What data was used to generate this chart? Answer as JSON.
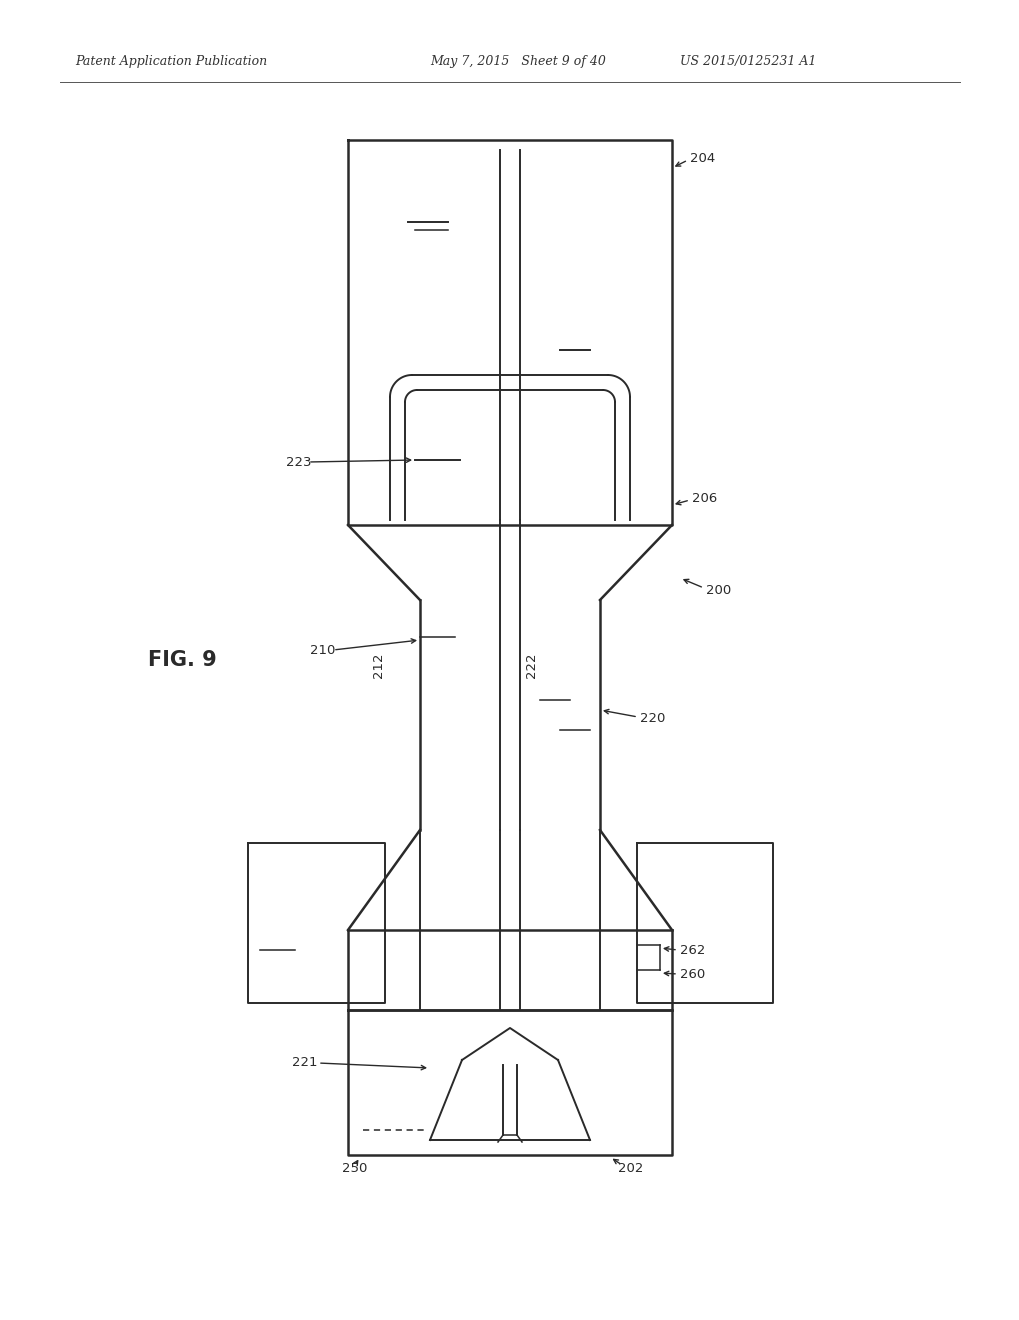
{
  "bg_color": "#ffffff",
  "lc": "#2a2a2a",
  "header_left": "Patent Application Publication",
  "header_mid": "May 7, 2015   Sheet 9 of 40",
  "header_right": "US 2015/0125231 A1",
  "fig_label": "FIG. 9",
  "lw": 1.4,
  "lw2": 1.8,
  "figsize": [
    10.2,
    13.2
  ],
  "dpi": 100
}
